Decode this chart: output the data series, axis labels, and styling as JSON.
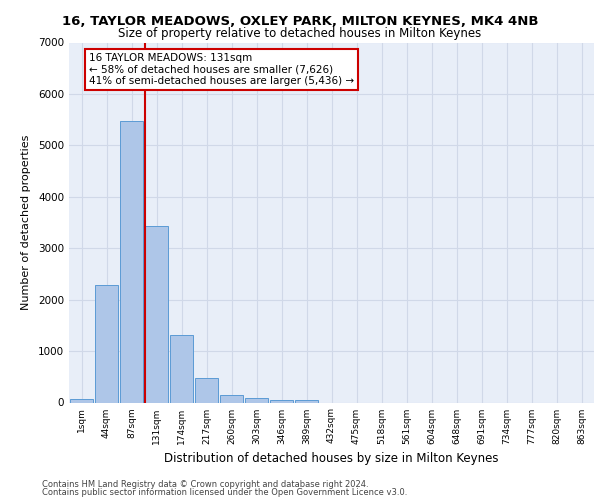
{
  "title1": "16, TAYLOR MEADOWS, OXLEY PARK, MILTON KEYNES, MK4 4NB",
  "title2": "Size of property relative to detached houses in Milton Keynes",
  "xlabel": "Distribution of detached houses by size in Milton Keynes",
  "ylabel": "Number of detached properties",
  "footer1": "Contains HM Land Registry data © Crown copyright and database right 2024.",
  "footer2": "Contains public sector information licensed under the Open Government Licence v3.0.",
  "annotation_line1": "16 TAYLOR MEADOWS: 131sqm",
  "annotation_line2": "← 58% of detached houses are smaller (7,626)",
  "annotation_line3": "41% of semi-detached houses are larger (5,436) →",
  "bar_labels": [
    "1sqm",
    "44sqm",
    "87sqm",
    "131sqm",
    "174sqm",
    "217sqm",
    "260sqm",
    "303sqm",
    "346sqm",
    "389sqm",
    "432sqm",
    "475sqm",
    "518sqm",
    "561sqm",
    "604sqm",
    "648sqm",
    "691sqm",
    "734sqm",
    "777sqm",
    "820sqm",
    "863sqm"
  ],
  "bar_values": [
    75,
    2280,
    5470,
    3440,
    1320,
    470,
    155,
    90,
    55,
    40,
    0,
    0,
    0,
    0,
    0,
    0,
    0,
    0,
    0,
    0,
    0
  ],
  "bar_color": "#aec6e8",
  "bar_edge_color": "#5b9bd5",
  "vline_color": "#cc0000",
  "vline_x_index": 3,
  "annotation_box_color": "#cc0000",
  "annotation_bg": "#ffffff",
  "grid_color": "#d0d8e8",
  "bg_color": "#e8eef8",
  "ylim": [
    0,
    7000
  ],
  "yticks": [
    0,
    1000,
    2000,
    3000,
    4000,
    5000,
    6000,
    7000
  ],
  "title1_fontsize": 9.5,
  "title2_fontsize": 8.5,
  "annotation_fontsize": 7.5,
  "xlabel_fontsize": 8.5,
  "ylabel_fontsize": 8,
  "xtick_fontsize": 6.5,
  "ytick_fontsize": 7.5,
  "footer_fontsize": 6
}
